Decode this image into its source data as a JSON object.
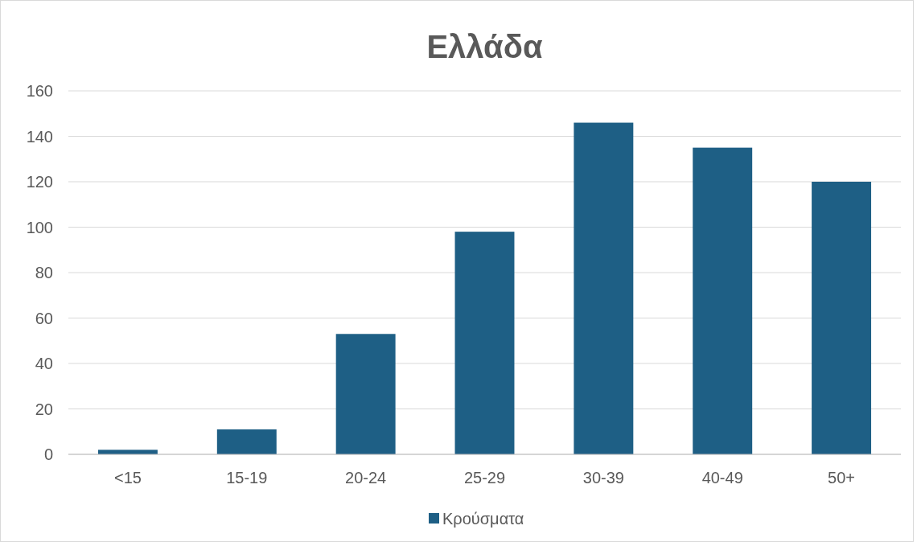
{
  "chart_data": {
    "type": "bar",
    "title": "Ελλάδα",
    "categories": [
      "<15",
      "15-19",
      "20-24",
      "25-29",
      "30-39",
      "40-49",
      "50+"
    ],
    "series": [
      {
        "name": "Κρούσματα",
        "color": "#1e5f85",
        "values": [
          2,
          11,
          53,
          98,
          146,
          135,
          120
        ]
      }
    ],
    "ylim": [
      0,
      160
    ],
    "yticks": [
      0,
      20,
      40,
      60,
      80,
      100,
      120,
      140,
      160
    ],
    "grid": "y",
    "legend": "bottom"
  }
}
